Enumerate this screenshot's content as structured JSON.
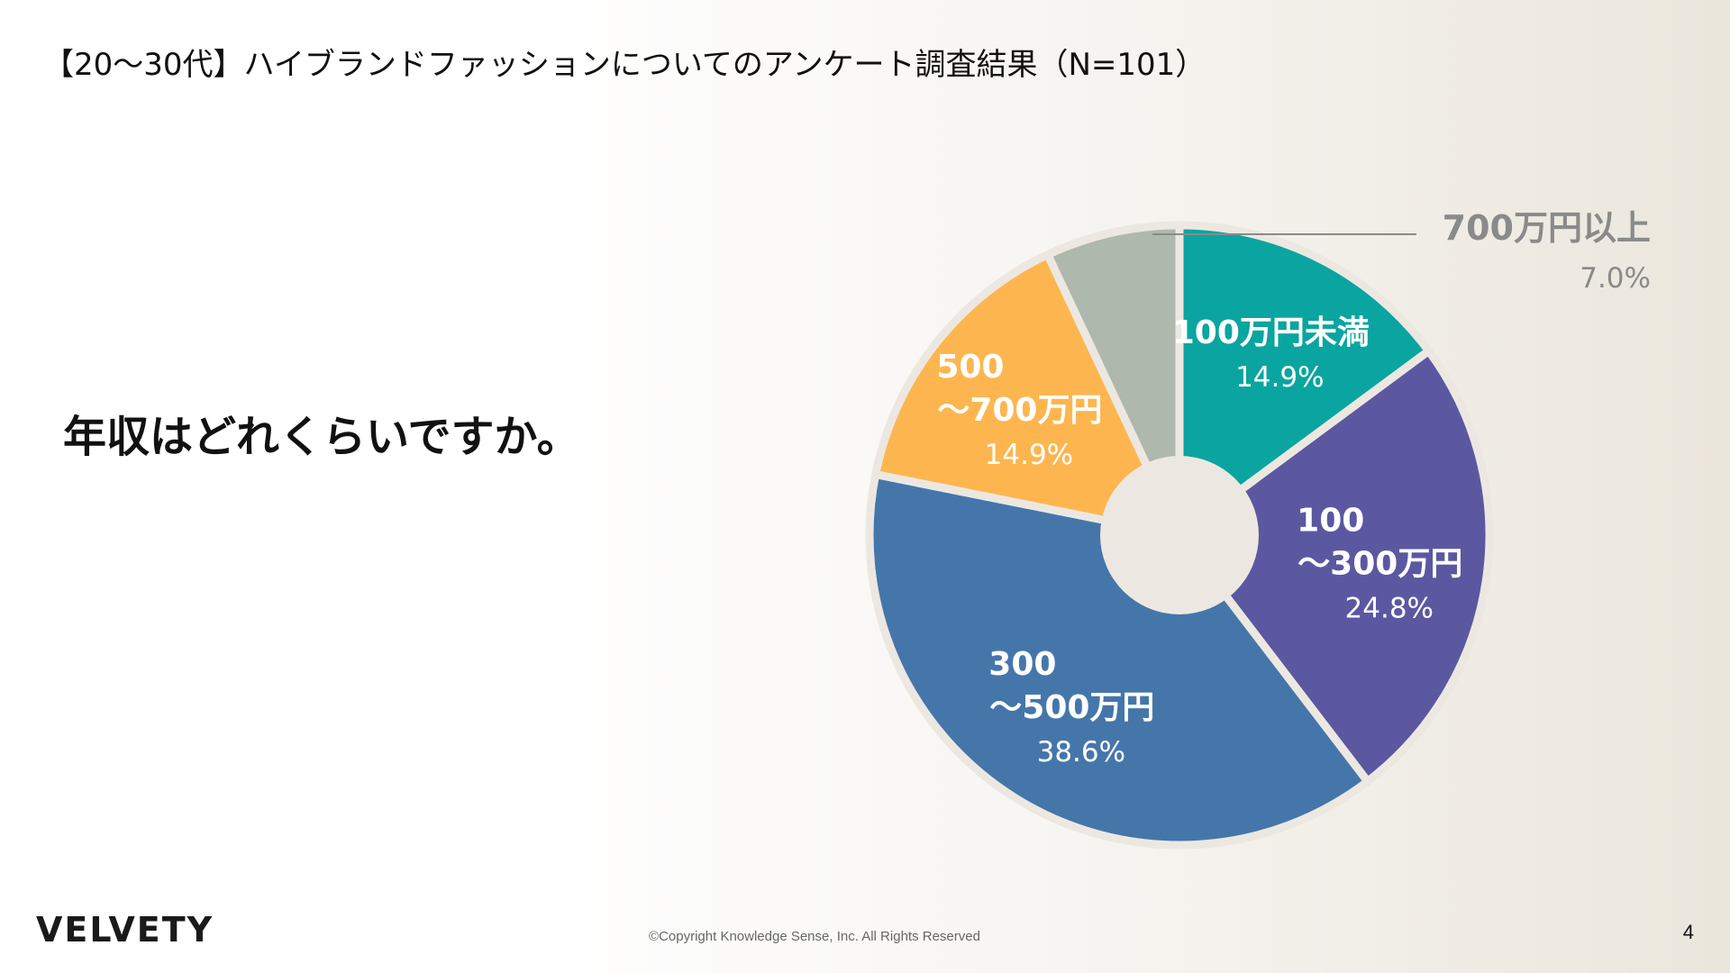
{
  "header": {
    "title": "【20〜30代】ハイブランドファッションについてのアンケート調査結果（N=101）"
  },
  "question": "年収はどれくらいですか。",
  "footer": {
    "logo": "VELVETY",
    "copyright": "©Copyright Knowledge Sense, Inc. All Rights Reserved",
    "page_number": "4"
  },
  "chart_data": {
    "type": "pie",
    "style": "donut",
    "title": "",
    "slices": [
      {
        "label_lines": [
          "100万円未満"
        ],
        "value": 14.9,
        "percent_label": "14.9%",
        "color": "#0aa5a0"
      },
      {
        "label_lines": [
          "100",
          "〜300万円"
        ],
        "value": 24.8,
        "percent_label": "24.8%",
        "color": "#5b58a1"
      },
      {
        "label_lines": [
          "300",
          "〜500万円"
        ],
        "value": 38.6,
        "percent_label": "38.6%",
        "color": "#4576aa"
      },
      {
        "label_lines": [
          "500",
          "〜700万円"
        ],
        "value": 14.9,
        "percent_label": "14.9%",
        "color": "#fdb64f"
      },
      {
        "label_lines": [
          "700万円以上"
        ],
        "value": 7.0,
        "percent_label": "7.0%",
        "color": "#afb8ac",
        "label_outside": true
      }
    ],
    "start": "top",
    "direction": "clockwise"
  }
}
